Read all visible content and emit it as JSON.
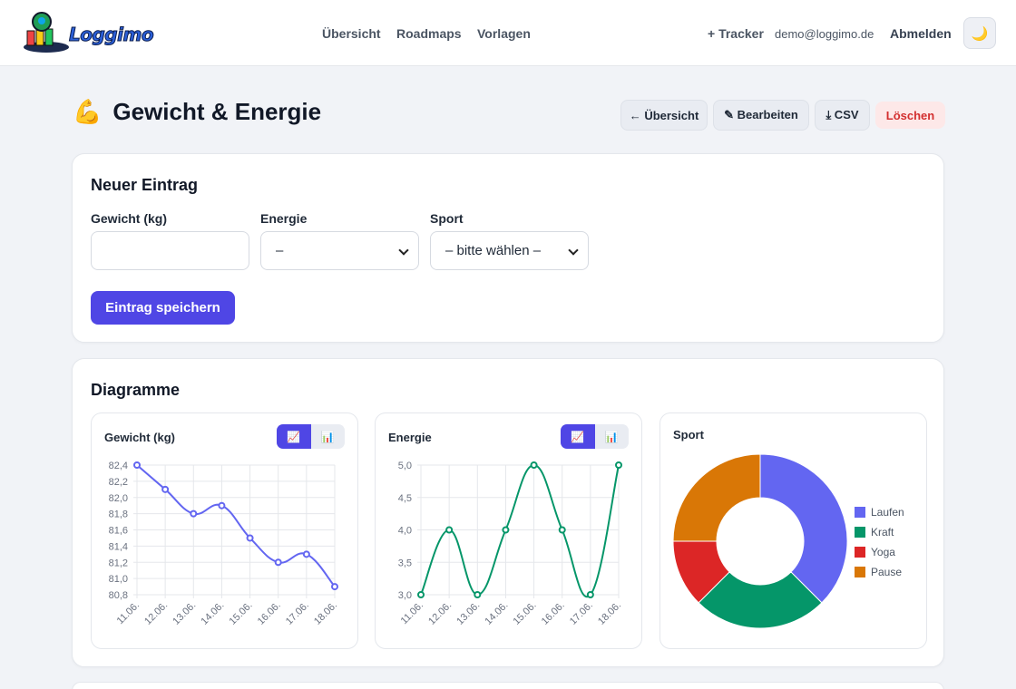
{
  "brand": {
    "name": "Loggimo"
  },
  "nav": {
    "overview": "Übersicht",
    "roadmaps": "Roadmaps",
    "templates": "Vorlagen"
  },
  "account": {
    "tracker": "+ Tracker",
    "email": "demo@loggimo.de",
    "logout": "Abmelden",
    "theme_icon": "moon-icon"
  },
  "page": {
    "icon": "flexed-biceps-icon",
    "title": "Gewicht & Energie",
    "actions": {
      "back": "← Übersicht",
      "edit": "✎ Bearbeiten",
      "csv": "⤓ CSV",
      "delete": "Löschen"
    }
  },
  "entry_form": {
    "title": "Neuer Eintrag",
    "fields": [
      {
        "label": "Gewicht (kg)",
        "value": ""
      },
      {
        "label": "Energie",
        "value": "–"
      },
      {
        "label": "Sport",
        "value": "– bitte wählen –"
      }
    ],
    "submit": "Eintrag speichern"
  },
  "charts_section": {
    "title": "Diagramme"
  },
  "colors": {
    "accent": "#4f46e5",
    "weight_line": "#6366f1",
    "energy_line": "#059669",
    "danger": "#d32f2f"
  },
  "chart_data": [
    {
      "type": "line",
      "title": "Gewicht (kg)",
      "toggle": [
        "📈",
        "📊"
      ],
      "x": [
        "11.06.",
        "12.06.",
        "13.06.",
        "14.06.",
        "15.06.",
        "16.06.",
        "17.06.",
        "18.06."
      ],
      "values": [
        82.4,
        82.1,
        81.8,
        81.9,
        81.5,
        81.2,
        81.3,
        80.9
      ],
      "yticks": [
        "82,4",
        "82,2",
        "82,0",
        "81,8",
        "81,6",
        "81,4",
        "81,2",
        "81,0",
        "80,8"
      ],
      "ylim": [
        80.8,
        82.4
      ],
      "grid": true
    },
    {
      "type": "line",
      "title": "Energie",
      "toggle": [
        "📈",
        "📊"
      ],
      "x": [
        "11.06.",
        "12.06.",
        "13.06.",
        "14.06.",
        "15.06.",
        "16.06.",
        "17.06.",
        "18.06."
      ],
      "values": [
        3,
        4,
        3,
        4,
        5,
        4,
        3,
        5
      ],
      "yticks": [
        "5,0",
        "4,5",
        "4,0",
        "3,5",
        "3,0"
      ],
      "ylim": [
        3,
        5
      ],
      "grid": true
    },
    {
      "type": "pie",
      "title": "Sport",
      "labels": [
        "Laufen",
        "Kraft",
        "Yoga",
        "Pause"
      ],
      "values": [
        3,
        2,
        1,
        2
      ],
      "colors": [
        "#6366f1",
        "#059669",
        "#dc2626",
        "#d97706"
      ],
      "legend": "right"
    }
  ]
}
